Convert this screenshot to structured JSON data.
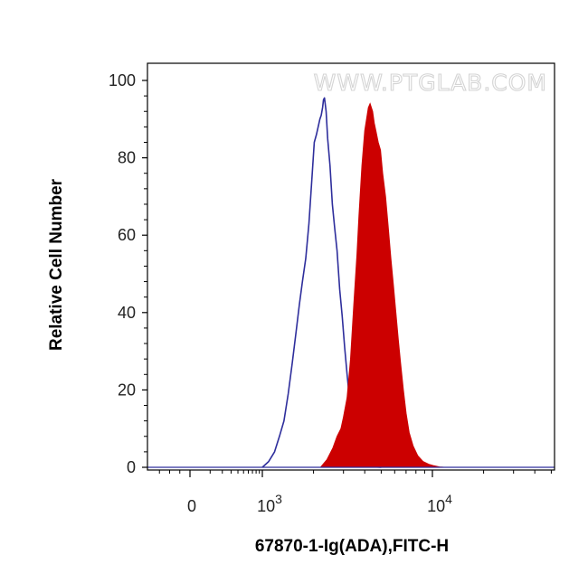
{
  "watermark": "WWW.PTGLAB.COM",
  "chart_data": {
    "type": "area",
    "xlabel": "67870-1-Ig(ADA),FITC-H",
    "ylabel": "Relative Cell Number",
    "x_scale": "biexponential",
    "xlim": [
      -400,
      50000
    ],
    "ylim": [
      0,
      100
    ],
    "grid": false,
    "x_ticks": [
      {
        "value": 0,
        "base": "0",
        "exp": ""
      },
      {
        "value": 1000,
        "base": "10",
        "exp": "3"
      },
      {
        "value": 10000,
        "base": "10",
        "exp": "4"
      }
    ],
    "y_ticks": [
      {
        "value": 0,
        "label": "0"
      },
      {
        "value": 20,
        "label": "20"
      },
      {
        "value": 40,
        "label": "40"
      },
      {
        "value": 60,
        "label": "60"
      },
      {
        "value": 80,
        "label": "80"
      },
      {
        "value": 100,
        "label": "100"
      }
    ],
    "series": [
      {
        "style": "line",
        "color": "#2e2e9c",
        "x": [
          1000,
          1090,
          1180,
          1260,
          1340,
          1420,
          1500,
          1580,
          1650,
          1720,
          1800,
          1880,
          1960,
          2020,
          2080,
          2130,
          2180,
          2220,
          2260,
          2290,
          2320,
          2370,
          2420,
          2500,
          2580,
          2660,
          2750,
          2850,
          2950,
          3050,
          3150,
          3250,
          3350,
          3450,
          3550,
          3650,
          3750,
          3900,
          4100,
          4300,
          4600,
          5000
        ],
        "y": [
          0,
          1.5,
          4,
          8,
          12,
          19,
          27,
          35,
          42,
          48,
          54,
          63,
          75,
          84,
          86,
          88,
          90,
          91,
          93,
          95,
          95.5,
          92,
          85,
          78,
          68,
          62,
          56,
          46,
          39,
          31,
          24,
          18,
          13,
          9,
          5,
          3.5,
          2,
          1,
          0.6,
          0.3,
          0.1,
          0
        ]
      },
      {
        "style": "filled",
        "color": "#cc0000",
        "x": [
          2200,
          2400,
          2600,
          2750,
          2900,
          3000,
          3150,
          3300,
          3450,
          3600,
          3700,
          3850,
          4000,
          4100,
          4200,
          4300,
          4450,
          4550,
          4650,
          4800,
          4950,
          5100,
          5300,
          5500,
          5700,
          5900,
          6100,
          6300,
          6500,
          6750,
          7000,
          7300,
          7700,
          8200,
          8800,
          9500,
          10200,
          11000,
          11700
        ],
        "y": [
          0,
          2,
          5,
          8,
          10,
          13,
          18,
          28,
          42,
          55,
          65,
          78,
          87,
          90,
          93,
          94,
          92,
          89,
          87,
          84,
          82,
          76,
          70,
          62,
          54,
          47,
          40,
          33,
          27,
          20,
          14,
          9,
          5.5,
          3,
          1.5,
          0.8,
          0.4,
          0.1,
          0
        ]
      }
    ]
  }
}
